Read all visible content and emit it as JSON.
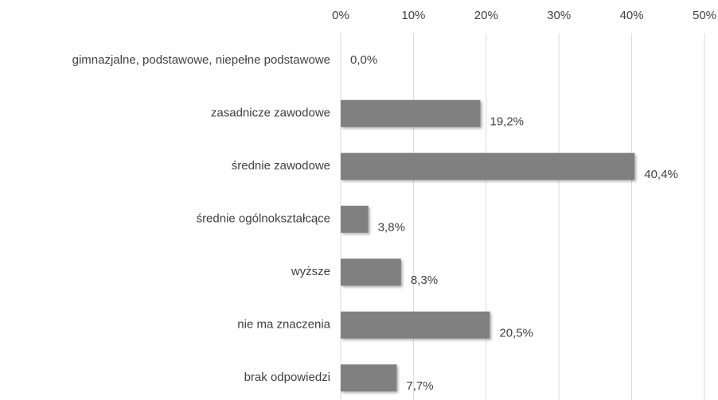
{
  "chart_data": {
    "type": "bar",
    "orientation": "horizontal",
    "categories": [
      "gimnazjalne, podstawowe, niepełne podstawowe",
      "zasadnicze zawodowe",
      "średnie zawodowe",
      "średnie ogólnokształcące",
      "wyższe",
      "nie ma znaczenia",
      "brak odpowiedzi"
    ],
    "values": [
      0,
      19.2,
      40.4,
      3.8,
      8.3,
      20.5,
      7.7
    ],
    "value_labels": [
      "0,0%",
      "19,2%",
      "40,4%",
      "3,8%",
      "8,3%",
      "20,5%",
      "7,7%"
    ],
    "color": "#808080",
    "xlim": [
      0,
      50
    ],
    "xticks": [
      {
        "value": 0,
        "label": "0%"
      },
      {
        "value": 10,
        "label": "10%"
      },
      {
        "value": 20,
        "label": "20%"
      },
      {
        "value": 30,
        "label": "30%"
      },
      {
        "value": 40,
        "label": "40%"
      },
      {
        "value": 50,
        "label": "50%"
      }
    ],
    "grid": true
  }
}
